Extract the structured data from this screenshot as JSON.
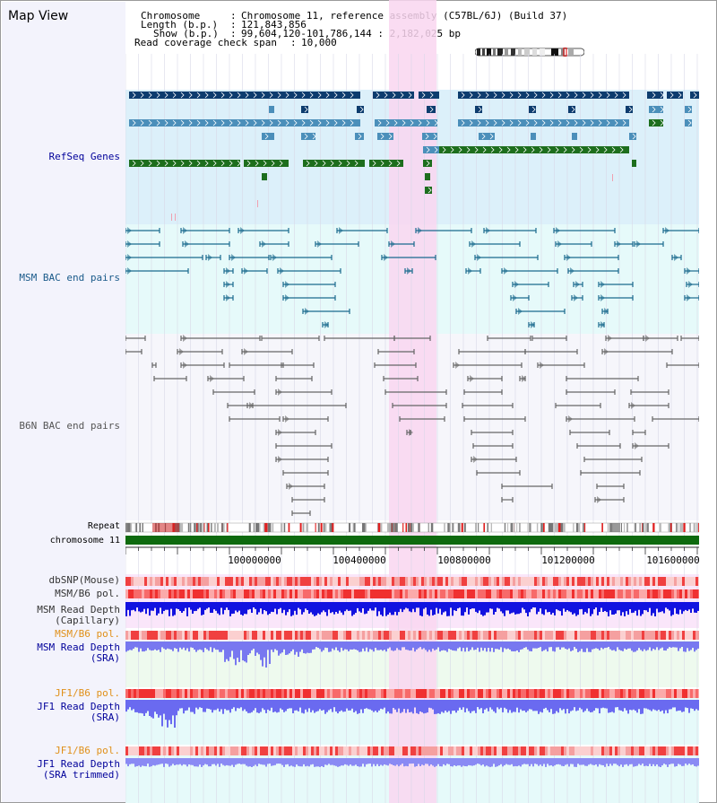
{
  "page_title": "Map View",
  "info": {
    "chromosome_label": "Chromosome",
    "chromosome_value": "Chromosome 11, reference assembly (C57BL/6J) (Build 37)",
    "length_label": "Length (b.p.)",
    "length_value": "121,843,856",
    "show_label": "Show (b.p.)",
    "show_value": "99,604,120-101,786,144 : 2,182,025 bp",
    "coverage_label": "Read coverage check span",
    "coverage_value": "10,000"
  },
  "tracks": {
    "refseq": "RefSeq Genes",
    "msm_bac": "MSM BAC end pairs",
    "b6n_bac": "B6N BAC end pairs",
    "repeat": "Repeat",
    "chromosome": "chromosome 11",
    "dbsnp": "dbSNP(Mouse)",
    "msm_b6_pol_1": "MSM/B6 pol.",
    "msm_read_depth_cap_1": "MSM Read Depth",
    "msm_read_depth_cap_2": "(Capillary)",
    "msm_b6_pol_2": "MSM/B6 pol.",
    "msm_read_depth_sra_1": "MSM Read Depth",
    "msm_read_depth_sra_2": "(SRA)",
    "jf1_b6_pol_1": "JF1/B6 pol.",
    "jf1_read_depth_sra_1": "JF1 Read Depth",
    "jf1_read_depth_sra_2": "(SRA)",
    "jf1_b6_pol_2": "JF1/B6 pol.",
    "jf1_read_depth_trim_1": "JF1 Read Depth",
    "jf1_read_depth_trim_2": "(SRA trimmed)"
  },
  "axis": {
    "ticks": [
      "100000000",
      "100400000",
      "100800000",
      "101200000",
      "101600000"
    ]
  },
  "colors": {
    "refseq_bg": "#dcf0fa",
    "msm_bg": "#e6fafa",
    "b6n_bg": "#f6f6fb",
    "highlight": "#f9d6f0",
    "dark_navy": "#0d3c6e",
    "mid_blue": "#4b8fba",
    "green": "#1d6e1d",
    "msm_line": "#1a6a8e",
    "b6n_line": "#666666",
    "chrom_bar": "#0e6a0e",
    "depth_dark": "#1212e0",
    "depth_light": "#7878f0",
    "label_blue": "#00009a",
    "label_orange": "#e0901a",
    "label_teal": "#1a5a8a"
  }
}
